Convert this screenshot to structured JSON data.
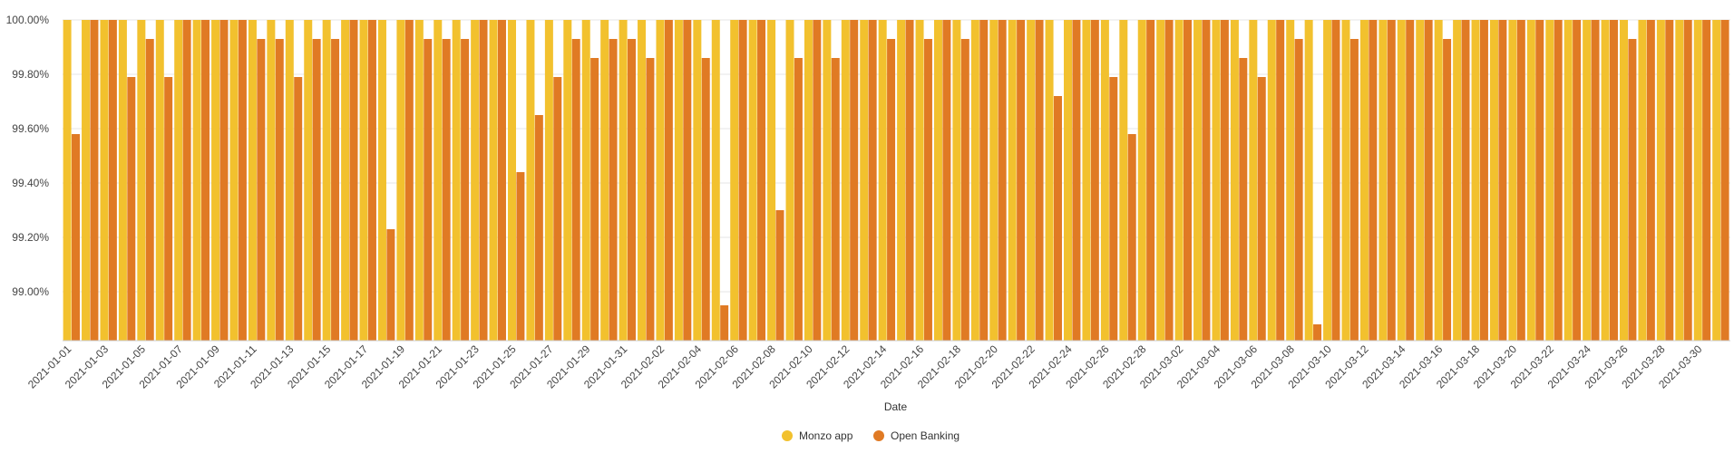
{
  "chart_data": {
    "type": "bar",
    "title": "",
    "xlabel": "Date",
    "ylabel": "",
    "ylim": [
      98.82,
      100.0
    ],
    "y_ticks": [
      99.0,
      99.2,
      99.4,
      99.6,
      99.8,
      100.0
    ],
    "y_tick_labels": [
      "99.00%",
      "99.20%",
      "99.40%",
      "99.60%",
      "99.80%",
      "100.00%"
    ],
    "grid": true,
    "legend_position": "bottom",
    "categories": [
      "2021-01-01",
      "2021-01-02",
      "2021-01-03",
      "2021-01-04",
      "2021-01-05",
      "2021-01-06",
      "2021-01-07",
      "2021-01-08",
      "2021-01-09",
      "2021-01-10",
      "2021-01-11",
      "2021-01-12",
      "2021-01-13",
      "2021-01-14",
      "2021-01-15",
      "2021-01-16",
      "2021-01-17",
      "2021-01-18",
      "2021-01-19",
      "2021-01-20",
      "2021-01-21",
      "2021-01-22",
      "2021-01-23",
      "2021-01-24",
      "2021-01-25",
      "2021-01-26",
      "2021-01-27",
      "2021-01-28",
      "2021-01-29",
      "2021-01-30",
      "2021-01-31",
      "2021-02-01",
      "2021-02-02",
      "2021-02-03",
      "2021-02-04",
      "2021-02-05",
      "2021-02-06",
      "2021-02-07",
      "2021-02-08",
      "2021-02-09",
      "2021-02-10",
      "2021-02-11",
      "2021-02-12",
      "2021-02-13",
      "2021-02-14",
      "2021-02-15",
      "2021-02-16",
      "2021-02-17",
      "2021-02-18",
      "2021-02-19",
      "2021-02-20",
      "2021-02-21",
      "2021-02-22",
      "2021-02-23",
      "2021-02-24",
      "2021-02-25",
      "2021-02-26",
      "2021-02-27",
      "2021-02-28",
      "2021-03-01",
      "2021-03-02",
      "2021-03-03",
      "2021-03-04",
      "2021-03-05",
      "2021-03-06",
      "2021-03-07",
      "2021-03-08",
      "2021-03-09",
      "2021-03-10",
      "2021-03-11",
      "2021-03-12",
      "2021-03-13",
      "2021-03-14",
      "2021-03-15",
      "2021-03-16",
      "2021-03-17",
      "2021-03-18",
      "2021-03-19",
      "2021-03-20",
      "2021-03-21",
      "2021-03-22",
      "2021-03-23",
      "2021-03-24",
      "2021-03-25",
      "2021-03-26",
      "2021-03-27",
      "2021-03-28",
      "2021-03-29",
      "2021-03-30",
      "2021-03-31"
    ],
    "x_tick_labels": [
      "2021-01-01",
      "2021-01-03",
      "2021-01-05",
      "2021-01-07",
      "2021-01-09",
      "2021-01-11",
      "2021-01-13",
      "2021-01-15",
      "2021-01-17",
      "2021-01-19",
      "2021-01-21",
      "2021-01-23",
      "2021-01-25",
      "2021-01-27",
      "2021-01-29",
      "2021-01-31",
      "2021-02-02",
      "2021-02-04",
      "2021-02-06",
      "2021-02-08",
      "2021-02-10",
      "2021-02-12",
      "2021-02-14",
      "2021-02-16",
      "2021-02-18",
      "2021-02-20",
      "2021-02-22",
      "2021-02-24",
      "2021-02-26",
      "2021-02-28",
      "2021-03-02",
      "2021-03-04",
      "2021-03-06",
      "2021-03-08",
      "2021-03-10",
      "2021-03-12",
      "2021-03-14",
      "2021-03-16",
      "2021-03-18",
      "2021-03-20",
      "2021-03-22",
      "2021-03-24",
      "2021-03-26",
      "2021-03-28",
      "2021-03-30"
    ],
    "series": [
      {
        "name": "Monzo app",
        "color": "#f2c12e",
        "values": [
          100,
          100,
          100,
          100,
          100,
          100,
          100,
          100,
          100,
          100,
          100,
          100,
          100,
          100,
          100,
          100,
          100,
          100,
          100,
          100,
          100,
          100,
          100,
          100,
          100,
          100,
          100,
          100,
          100,
          100,
          100,
          100,
          100,
          100,
          100,
          100,
          100,
          100,
          100,
          100,
          100,
          100,
          100,
          100,
          100,
          100,
          100,
          100,
          100,
          100,
          100,
          100,
          100,
          100,
          100,
          100,
          100,
          100,
          100,
          100,
          100,
          100,
          100,
          100,
          100,
          100,
          100,
          100,
          100,
          100,
          100,
          100,
          100,
          100,
          100,
          100,
          100,
          100,
          100,
          100,
          100,
          100,
          100,
          100,
          100,
          100,
          100,
          100,
          100,
          100
        ]
      },
      {
        "name": "Open Banking",
        "color": "#e07a24",
        "values": [
          99.58,
          100,
          100,
          99.79,
          99.93,
          99.79,
          100,
          100,
          100,
          100,
          99.93,
          99.93,
          99.79,
          99.93,
          99.93,
          100,
          100,
          99.23,
          100,
          99.93,
          99.93,
          99.93,
          100,
          100,
          99.44,
          99.65,
          99.79,
          99.93,
          99.86,
          99.93,
          99.93,
          99.86,
          100,
          100,
          99.86,
          98.95,
          100,
          100,
          99.3,
          99.86,
          100,
          99.86,
          100,
          100,
          99.93,
          100,
          99.93,
          100,
          99.93,
          100,
          100,
          100,
          100,
          99.72,
          100,
          100,
          99.79,
          99.58,
          100,
          100,
          100,
          100,
          100,
          99.86,
          99.79,
          100,
          99.93,
          98.88,
          100,
          99.93,
          100,
          100,
          100,
          100,
          99.93,
          100,
          100,
          100,
          100,
          100,
          100,
          100,
          100,
          100,
          99.93,
          100,
          100,
          100,
          100,
          100
        ]
      }
    ]
  }
}
